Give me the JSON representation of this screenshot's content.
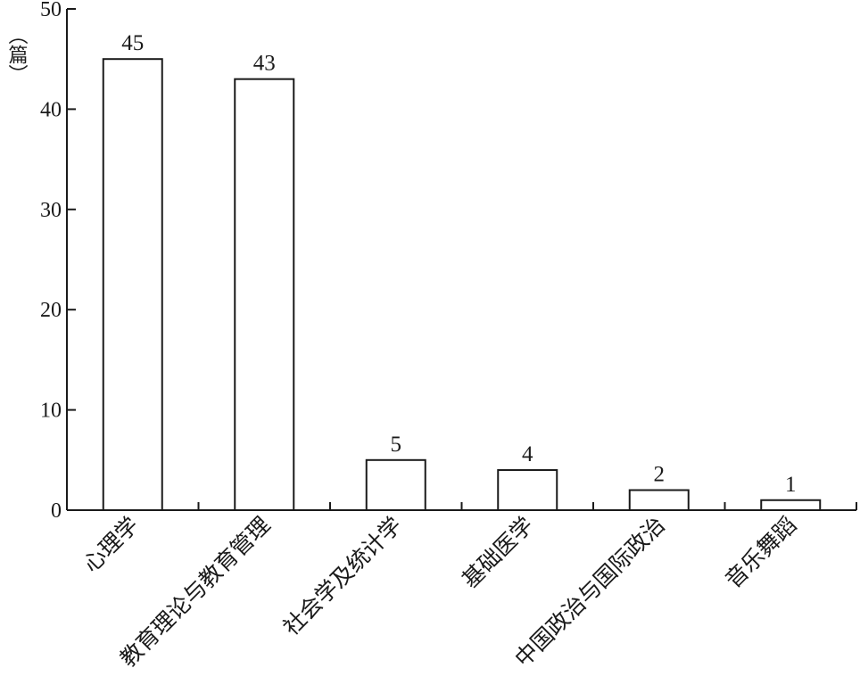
{
  "chart_data": {
    "type": "bar",
    "categories": [
      "心理学",
      "教育理论与教育管理",
      "社会学及统计学",
      "基础医学",
      "中国政治与国际政治",
      "音乐舞蹈"
    ],
    "values": [
      45,
      43,
      5,
      4,
      2,
      1
    ],
    "data_labels": [
      "45",
      "43",
      "5",
      "4",
      "2",
      "1"
    ],
    "ylabel": "（篇）",
    "ylim": [
      0,
      50
    ],
    "yticks": [
      0,
      10,
      20,
      30,
      40,
      50
    ],
    "grid": false,
    "legend": "none"
  }
}
